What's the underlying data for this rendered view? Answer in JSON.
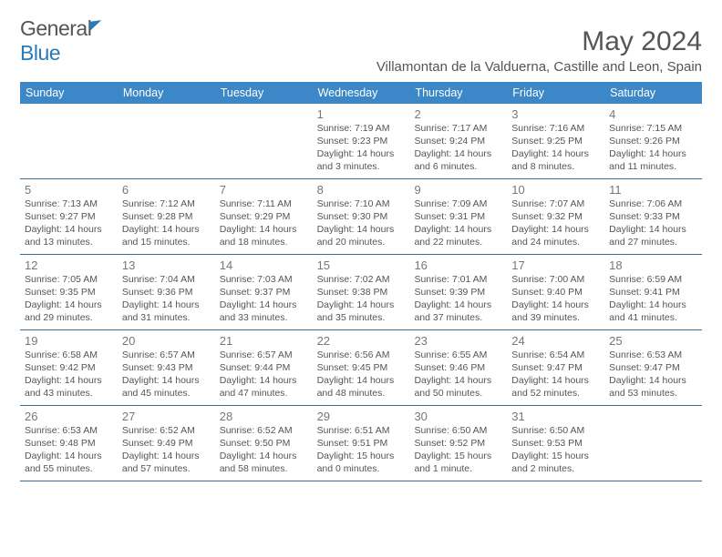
{
  "logo": {
    "part1": "General",
    "part2": "Blue"
  },
  "title": "May 2024",
  "location": "Villamontan de la Valduerna, Castille and Leon, Spain",
  "dow": [
    "Sunday",
    "Monday",
    "Tuesday",
    "Wednesday",
    "Thursday",
    "Friday",
    "Saturday"
  ],
  "header_bg": "#3b87c8",
  "rule_color": "#3b6b9a",
  "text_color": "#555555",
  "cell_fontsize": 10.5,
  "weeks": [
    [
      {
        "day": "",
        "sunrise": "",
        "sunset": "",
        "daylight": ""
      },
      {
        "day": "",
        "sunrise": "",
        "sunset": "",
        "daylight": ""
      },
      {
        "day": "",
        "sunrise": "",
        "sunset": "",
        "daylight": ""
      },
      {
        "day": "1",
        "sunrise": "Sunrise: 7:19 AM",
        "sunset": "Sunset: 9:23 PM",
        "daylight": "Daylight: 14 hours and 3 minutes."
      },
      {
        "day": "2",
        "sunrise": "Sunrise: 7:17 AM",
        "sunset": "Sunset: 9:24 PM",
        "daylight": "Daylight: 14 hours and 6 minutes."
      },
      {
        "day": "3",
        "sunrise": "Sunrise: 7:16 AM",
        "sunset": "Sunset: 9:25 PM",
        "daylight": "Daylight: 14 hours and 8 minutes."
      },
      {
        "day": "4",
        "sunrise": "Sunrise: 7:15 AM",
        "sunset": "Sunset: 9:26 PM",
        "daylight": "Daylight: 14 hours and 11 minutes."
      }
    ],
    [
      {
        "day": "5",
        "sunrise": "Sunrise: 7:13 AM",
        "sunset": "Sunset: 9:27 PM",
        "daylight": "Daylight: 14 hours and 13 minutes."
      },
      {
        "day": "6",
        "sunrise": "Sunrise: 7:12 AM",
        "sunset": "Sunset: 9:28 PM",
        "daylight": "Daylight: 14 hours and 15 minutes."
      },
      {
        "day": "7",
        "sunrise": "Sunrise: 7:11 AM",
        "sunset": "Sunset: 9:29 PM",
        "daylight": "Daylight: 14 hours and 18 minutes."
      },
      {
        "day": "8",
        "sunrise": "Sunrise: 7:10 AM",
        "sunset": "Sunset: 9:30 PM",
        "daylight": "Daylight: 14 hours and 20 minutes."
      },
      {
        "day": "9",
        "sunrise": "Sunrise: 7:09 AM",
        "sunset": "Sunset: 9:31 PM",
        "daylight": "Daylight: 14 hours and 22 minutes."
      },
      {
        "day": "10",
        "sunrise": "Sunrise: 7:07 AM",
        "sunset": "Sunset: 9:32 PM",
        "daylight": "Daylight: 14 hours and 24 minutes."
      },
      {
        "day": "11",
        "sunrise": "Sunrise: 7:06 AM",
        "sunset": "Sunset: 9:33 PM",
        "daylight": "Daylight: 14 hours and 27 minutes."
      }
    ],
    [
      {
        "day": "12",
        "sunrise": "Sunrise: 7:05 AM",
        "sunset": "Sunset: 9:35 PM",
        "daylight": "Daylight: 14 hours and 29 minutes."
      },
      {
        "day": "13",
        "sunrise": "Sunrise: 7:04 AM",
        "sunset": "Sunset: 9:36 PM",
        "daylight": "Daylight: 14 hours and 31 minutes."
      },
      {
        "day": "14",
        "sunrise": "Sunrise: 7:03 AM",
        "sunset": "Sunset: 9:37 PM",
        "daylight": "Daylight: 14 hours and 33 minutes."
      },
      {
        "day": "15",
        "sunrise": "Sunrise: 7:02 AM",
        "sunset": "Sunset: 9:38 PM",
        "daylight": "Daylight: 14 hours and 35 minutes."
      },
      {
        "day": "16",
        "sunrise": "Sunrise: 7:01 AM",
        "sunset": "Sunset: 9:39 PM",
        "daylight": "Daylight: 14 hours and 37 minutes."
      },
      {
        "day": "17",
        "sunrise": "Sunrise: 7:00 AM",
        "sunset": "Sunset: 9:40 PM",
        "daylight": "Daylight: 14 hours and 39 minutes."
      },
      {
        "day": "18",
        "sunrise": "Sunrise: 6:59 AM",
        "sunset": "Sunset: 9:41 PM",
        "daylight": "Daylight: 14 hours and 41 minutes."
      }
    ],
    [
      {
        "day": "19",
        "sunrise": "Sunrise: 6:58 AM",
        "sunset": "Sunset: 9:42 PM",
        "daylight": "Daylight: 14 hours and 43 minutes."
      },
      {
        "day": "20",
        "sunrise": "Sunrise: 6:57 AM",
        "sunset": "Sunset: 9:43 PM",
        "daylight": "Daylight: 14 hours and 45 minutes."
      },
      {
        "day": "21",
        "sunrise": "Sunrise: 6:57 AM",
        "sunset": "Sunset: 9:44 PM",
        "daylight": "Daylight: 14 hours and 47 minutes."
      },
      {
        "day": "22",
        "sunrise": "Sunrise: 6:56 AM",
        "sunset": "Sunset: 9:45 PM",
        "daylight": "Daylight: 14 hours and 48 minutes."
      },
      {
        "day": "23",
        "sunrise": "Sunrise: 6:55 AM",
        "sunset": "Sunset: 9:46 PM",
        "daylight": "Daylight: 14 hours and 50 minutes."
      },
      {
        "day": "24",
        "sunrise": "Sunrise: 6:54 AM",
        "sunset": "Sunset: 9:47 PM",
        "daylight": "Daylight: 14 hours and 52 minutes."
      },
      {
        "day": "25",
        "sunrise": "Sunrise: 6:53 AM",
        "sunset": "Sunset: 9:47 PM",
        "daylight": "Daylight: 14 hours and 53 minutes."
      }
    ],
    [
      {
        "day": "26",
        "sunrise": "Sunrise: 6:53 AM",
        "sunset": "Sunset: 9:48 PM",
        "daylight": "Daylight: 14 hours and 55 minutes."
      },
      {
        "day": "27",
        "sunrise": "Sunrise: 6:52 AM",
        "sunset": "Sunset: 9:49 PM",
        "daylight": "Daylight: 14 hours and 57 minutes."
      },
      {
        "day": "28",
        "sunrise": "Sunrise: 6:52 AM",
        "sunset": "Sunset: 9:50 PM",
        "daylight": "Daylight: 14 hours and 58 minutes."
      },
      {
        "day": "29",
        "sunrise": "Sunrise: 6:51 AM",
        "sunset": "Sunset: 9:51 PM",
        "daylight": "Daylight: 15 hours and 0 minutes."
      },
      {
        "day": "30",
        "sunrise": "Sunrise: 6:50 AM",
        "sunset": "Sunset: 9:52 PM",
        "daylight": "Daylight: 15 hours and 1 minute."
      },
      {
        "day": "31",
        "sunrise": "Sunrise: 6:50 AM",
        "sunset": "Sunset: 9:53 PM",
        "daylight": "Daylight: 15 hours and 2 minutes."
      },
      {
        "day": "",
        "sunrise": "",
        "sunset": "",
        "daylight": ""
      }
    ]
  ]
}
